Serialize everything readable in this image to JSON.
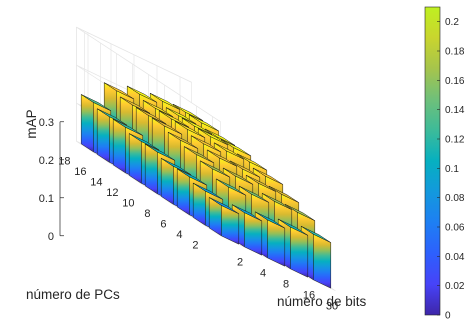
{
  "chart_data": {
    "type": "bar3d",
    "title": "",
    "xlabel": "número de bits",
    "ylabel": "número de PCs",
    "zlabel": "mAP",
    "x_categories": [
      "2",
      "4",
      "8",
      "16",
      "30"
    ],
    "y_categories": [
      "2",
      "4",
      "6",
      "8",
      "10",
      "12",
      "14",
      "16",
      "18"
    ],
    "zlim": [
      0,
      0.3
    ],
    "z_ticks": [
      "0",
      "0.1",
      "0.2",
      "0.3"
    ],
    "grid": true,
    "colormap": "parula",
    "colorbar": {
      "range": [
        0,
        0.21
      ],
      "ticks": [
        "0",
        "0.02",
        "0.04",
        "0.06",
        "0.08",
        "0.1",
        "0.12",
        "0.14",
        "0.16",
        "0.18",
        "0.2"
      ]
    },
    "values": [
      [
        0.08,
        0.09,
        0.1,
        0.11,
        0.12
      ],
      [
        0.09,
        0.13,
        0.14,
        0.15,
        0.15
      ],
      [
        0.1,
        0.15,
        0.16,
        0.17,
        0.17
      ],
      [
        0.1,
        0.16,
        0.18,
        0.18,
        0.19
      ],
      [
        0.11,
        0.17,
        0.19,
        0.2,
        0.2
      ],
      [
        0.11,
        0.18,
        0.2,
        0.21,
        0.21
      ],
      [
        0.12,
        0.18,
        0.2,
        0.21,
        0.21
      ],
      [
        0.12,
        0.18,
        0.2,
        0.21,
        0.22
      ],
      [
        0.13,
        0.19,
        0.21,
        0.22,
        0.22
      ]
    ]
  }
}
